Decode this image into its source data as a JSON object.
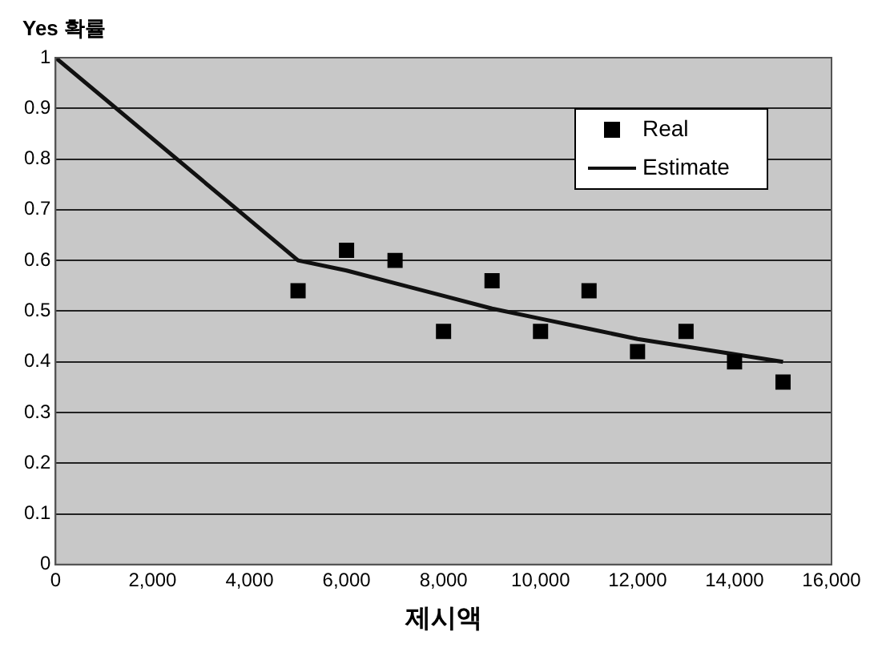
{
  "chart_data": {
    "type": "scatter",
    "xlabel": "제시액",
    "ylabel": "Yes 확률",
    "xlim": [
      0,
      16000
    ],
    "xticks": [
      {
        "value": 0,
        "label": "0"
      },
      {
        "value": 2000,
        "label": "2,000"
      },
      {
        "value": 4000,
        "label": "4,000"
      },
      {
        "value": 6000,
        "label": "6,000"
      },
      {
        "value": 8000,
        "label": "8,000"
      },
      {
        "value": 10000,
        "label": "10,000"
      },
      {
        "value": 12000,
        "label": "12,000"
      },
      {
        "value": 14000,
        "label": "14,000"
      },
      {
        "value": 16000,
        "label": "16,000"
      }
    ],
    "ylim": [
      0,
      1
    ],
    "yticks": [
      0,
      0.1,
      0.2,
      0.3,
      0.4,
      0.5,
      0.6,
      0.7,
      0.8,
      0.9,
      1
    ],
    "grid": "y",
    "legend": "top right",
    "series": [
      {
        "name": "Real",
        "marker": "square",
        "color": "#000000",
        "x": [
          5000,
          6000,
          7000,
          8000,
          9000,
          10000,
          11000,
          12000,
          13000,
          14000,
          15000
        ],
        "values": [
          0.54,
          0.62,
          0.6,
          0.46,
          0.56,
          0.46,
          0.54,
          0.42,
          0.46,
          0.4,
          0.36
        ]
      },
      {
        "name": "Estimate",
        "type": "line",
        "color": "#111111",
        "x": [
          0,
          5000,
          6000,
          7000,
          8000,
          9000,
          10000,
          11000,
          12000,
          13000,
          14000,
          15000
        ],
        "values": [
          1,
          0.6,
          0.58,
          0.555,
          0.53,
          0.505,
          0.485,
          0.465,
          0.445,
          0.43,
          0.415,
          0.4
        ]
      }
    ]
  }
}
